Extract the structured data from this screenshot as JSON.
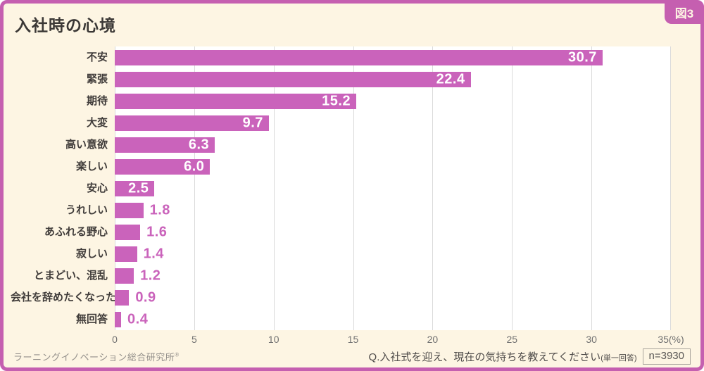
{
  "figure_tag": "図3",
  "title": "入社時の心境",
  "colors": {
    "accent": "#ca63bb",
    "frame": "#c55fb0",
    "background": "#fdf5e3"
  },
  "chart_data": {
    "type": "bar",
    "orientation": "horizontal",
    "title": "入社時の心境",
    "categories": [
      "不安",
      "緊張",
      "期待",
      "大変",
      "高い意欲",
      "楽しい",
      "安心",
      "うれしい",
      "あふれる野心",
      "寂しい",
      "とまどい、混乱",
      "会社を辞めたくなった",
      "無回答"
    ],
    "values": [
      30.7,
      22.4,
      15.2,
      9.7,
      6.3,
      6.0,
      2.5,
      1.8,
      1.6,
      1.4,
      1.2,
      0.9,
      0.4
    ],
    "xlim": [
      0,
      35
    ],
    "x_ticks": [
      0,
      5,
      10,
      15,
      20,
      25,
      30,
      35
    ],
    "x_axis_unit": "(%)",
    "grid": true,
    "legend": false,
    "value_label_inside_threshold": 2.5
  },
  "footer": {
    "source": "ラーニングイノベーション総合研究所",
    "source_mark": "®",
    "question": "Q.入社式を迎え、現在の気持ちを教えてください",
    "question_note": "(単一回答)",
    "sample_size": "n=3930"
  }
}
